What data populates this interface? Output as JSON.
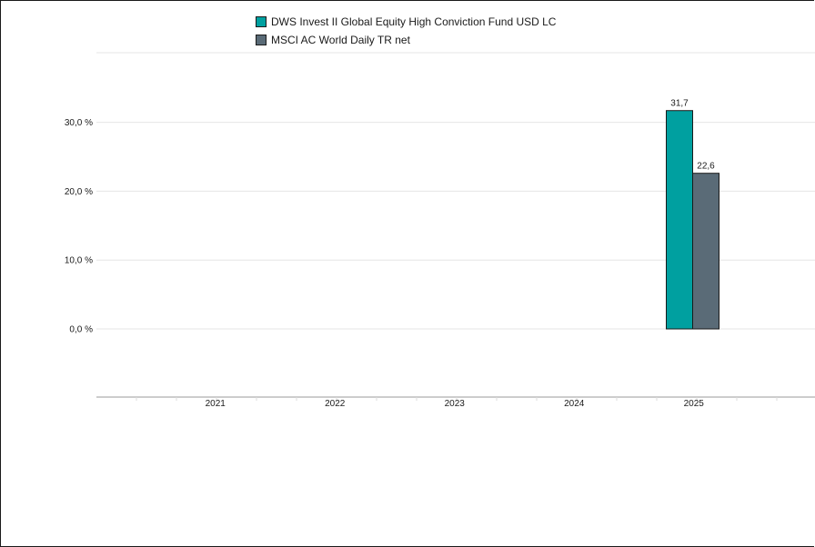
{
  "chart_data": {
    "type": "bar",
    "categories": [
      "2021",
      "2022",
      "2023",
      "2024",
      "2025"
    ],
    "series": [
      {
        "name": "DWS Invest II Global Equity High Conviction Fund USD LC",
        "color": "#00a0a0",
        "values": [
          null,
          null,
          null,
          null,
          31.7
        ],
        "labels": [
          "",
          "",
          "",
          "",
          "31,7"
        ]
      },
      {
        "name": "MSCI AC World Daily TR net",
        "color": "#5a6b77",
        "values": [
          null,
          null,
          null,
          null,
          22.6
        ],
        "labels": [
          "",
          "",
          "",
          "",
          "22,6"
        ]
      }
    ],
    "yticks": [
      0,
      10,
      20,
      30
    ],
    "ytick_labels": [
      "0,0 %",
      "10,0 %",
      "20,0 %",
      "30,0 %"
    ],
    "ylim": [
      -10,
      40
    ],
    "grid": true,
    "legend_position": "top-center"
  }
}
